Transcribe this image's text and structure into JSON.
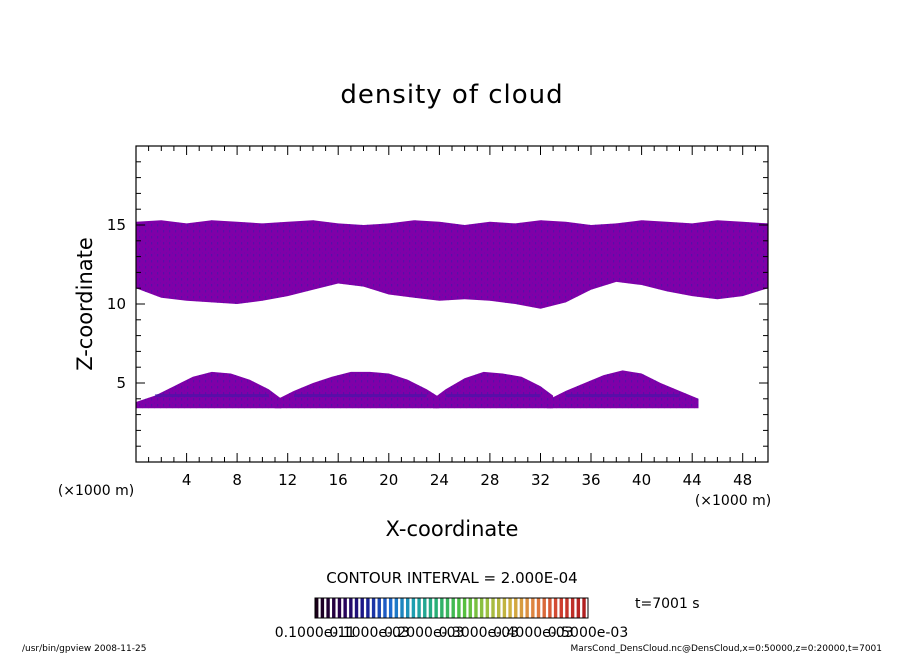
{
  "chart_data": {
    "type": "heatmap",
    "title": "density of cloud",
    "xlabel": "X-coordinate",
    "ylabel": "Z-coordinate",
    "x_unit_left": "(×1000 m)",
    "x_unit_right": "(×1000 m)",
    "xlim": [
      0,
      50
    ],
    "ylim": [
      0,
      20
    ],
    "x_ticks": [
      4,
      8,
      12,
      16,
      20,
      24,
      28,
      32,
      36,
      40,
      44,
      48
    ],
    "y_ticks": [
      5,
      10,
      15
    ],
    "grid": false,
    "fill_color": "#7f00a8",
    "core_color": "#3a1aa8",
    "upper_layer": {
      "x": [
        0,
        2,
        4,
        6,
        8,
        10,
        12,
        14,
        16,
        18,
        20,
        22,
        24,
        26,
        28,
        30,
        32,
        34,
        36,
        38,
        40,
        42,
        44,
        46,
        48,
        50
      ],
      "top": [
        15.2,
        15.3,
        15.1,
        15.3,
        15.2,
        15.1,
        15.2,
        15.3,
        15.1,
        15.0,
        15.1,
        15.3,
        15.2,
        15.0,
        15.2,
        15.1,
        15.3,
        15.2,
        15.0,
        15.1,
        15.3,
        15.2,
        15.1,
        15.3,
        15.2,
        15.1
      ],
      "bottom": [
        11.0,
        10.4,
        10.2,
        10.1,
        10.0,
        10.2,
        10.5,
        10.9,
        11.3,
        11.1,
        10.6,
        10.4,
        10.2,
        10.3,
        10.2,
        10.0,
        9.7,
        10.1,
        10.9,
        11.4,
        11.2,
        10.8,
        10.5,
        10.3,
        10.5,
        11.0
      ]
    },
    "lower_cells": [
      {
        "x": [
          0.0,
          1.5,
          3.0,
          4.5,
          6.0,
          7.5,
          9.0,
          10.5,
          11.5
        ],
        "top": [
          3.8,
          4.2,
          4.8,
          5.4,
          5.7,
          5.6,
          5.2,
          4.6,
          4.0
        ]
      },
      {
        "x": [
          11.0,
          12.5,
          14.0,
          15.5,
          17.0,
          18.5,
          20.0,
          21.5,
          23.0,
          24.0
        ],
        "top": [
          3.9,
          4.5,
          5.0,
          5.4,
          5.7,
          5.7,
          5.6,
          5.2,
          4.6,
          4.1
        ]
      },
      {
        "x": [
          23.5,
          24.5,
          26.0,
          27.5,
          29.0,
          30.5,
          32.0,
          33.0
        ],
        "top": [
          4.0,
          4.6,
          5.3,
          5.7,
          5.6,
          5.4,
          4.8,
          4.2
        ]
      },
      {
        "x": [
          32.5,
          34.0,
          35.5,
          37.0,
          38.5,
          40.0,
          41.5,
          43.0,
          44.5
        ],
        "top": [
          3.9,
          4.5,
          5.0,
          5.5,
          5.8,
          5.6,
          5.0,
          4.5,
          4.0
        ]
      }
    ],
    "lower_base": 3.4,
    "contour_interval": "CONTOUR INTERVAL = 2.000E-04",
    "time_label": "t=7001 s",
    "colorbar": {
      "labels": [
        "0.1000e-11",
        "0.1000e-03",
        "0.2000e-03",
        "0.3000e-03",
        "0.4000e-03",
        "0.5000e-03"
      ],
      "colors": [
        "#1a001a",
        "#2a0050",
        "#1a1a90",
        "#1e6ad0",
        "#1ea0b0",
        "#2ab070",
        "#50c040",
        "#9ac040",
        "#d0b040",
        "#e08040",
        "#d04030",
        "#b02020"
      ]
    },
    "footer_left": "/usr/bin/gpview   2008-11-25",
    "footer_right": "MarsCond_DensCloud.nc@DensCloud,x=0:50000,z=0:20000,t=7001"
  }
}
